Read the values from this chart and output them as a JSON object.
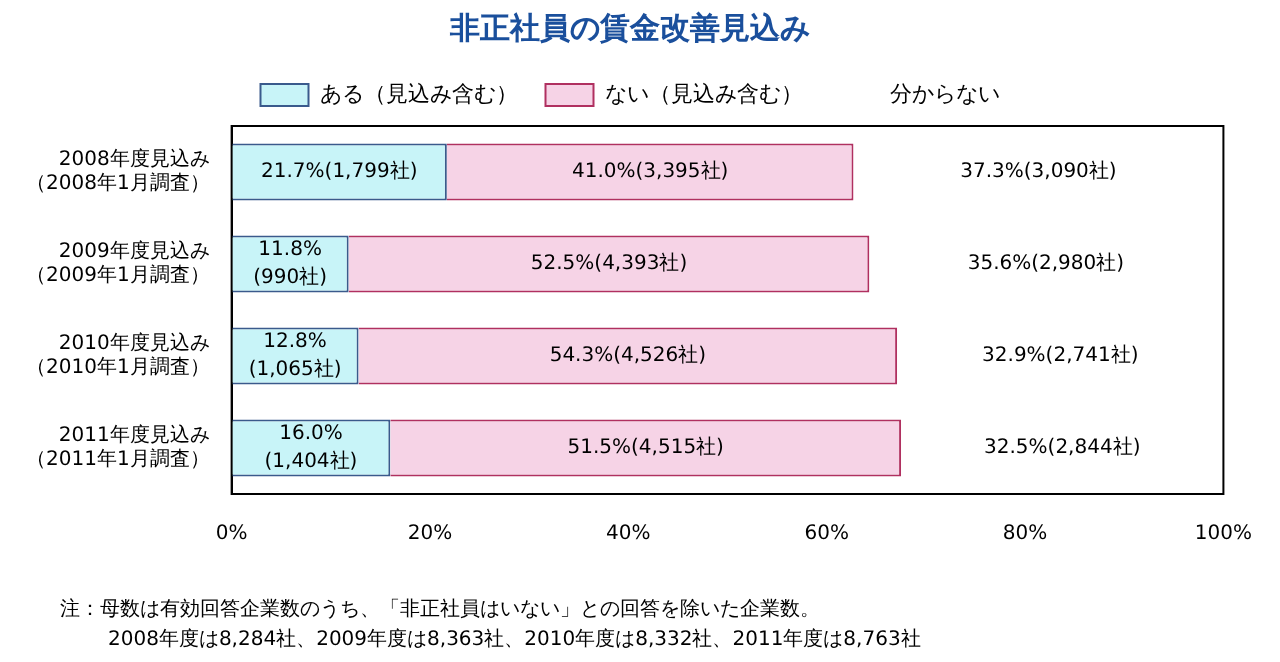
{
  "chart_data": {
    "type": "bar",
    "orientation": "horizontal",
    "stacked": true,
    "title": "非正社員の賃金改善見込み",
    "categories": [
      "2008年度見込み（2008年1月調査）",
      "2009年度見込み（2009年1月調査）",
      "2010年度見込み（2010年1月調査）",
      "2011年度見込み（2011年1月調査）"
    ],
    "series": [
      {
        "name": "ある（見込み含む）",
        "color": "#c8f4f8",
        "values": [
          21.7,
          11.8,
          12.8,
          16.0
        ],
        "value_labels": [
          "21.7%(1,799社)",
          "11.8%(990社)",
          "12.8%(1,065社)",
          "16.0%(1,404社)"
        ]
      },
      {
        "name": "ない（見込み含む）",
        "color": "#f6d3e6",
        "values": [
          41.0,
          52.5,
          54.3,
          51.5
        ],
        "value_labels": [
          "41.0%(3,395社)",
          "52.5%(4,393社)",
          "54.3%(4,526社)",
          "51.5%(4,515社)"
        ]
      },
      {
        "name": "分からない",
        "color": "#ffffff",
        "values": [
          37.3,
          35.6,
          32.9,
          32.5
        ],
        "value_labels": [
          "37.3%(3,090社)",
          "35.6%(2,980社)",
          "32.9%(2,741社)",
          "32.5%(2,844社)"
        ]
      }
    ],
    "xlim": [
      0,
      100
    ],
    "xticks": [
      {
        "value": 0,
        "label": "0%"
      },
      {
        "value": 20,
        "label": "20%"
      },
      {
        "value": 40,
        "label": "40%"
      },
      {
        "value": 60,
        "label": "60%"
      },
      {
        "value": 80,
        "label": "80%"
      },
      {
        "value": 100,
        "label": "100%"
      }
    ],
    "grid": false,
    "legend": "top",
    "annotations": [
      "注：母数は有効回答企業数のうち、「非正社員はいない」との回答を除いた企業数。",
      "2008年度は8,284社、2009年度は8,363社、2010年度は8,332社、2011年度は8,763社"
    ]
  }
}
